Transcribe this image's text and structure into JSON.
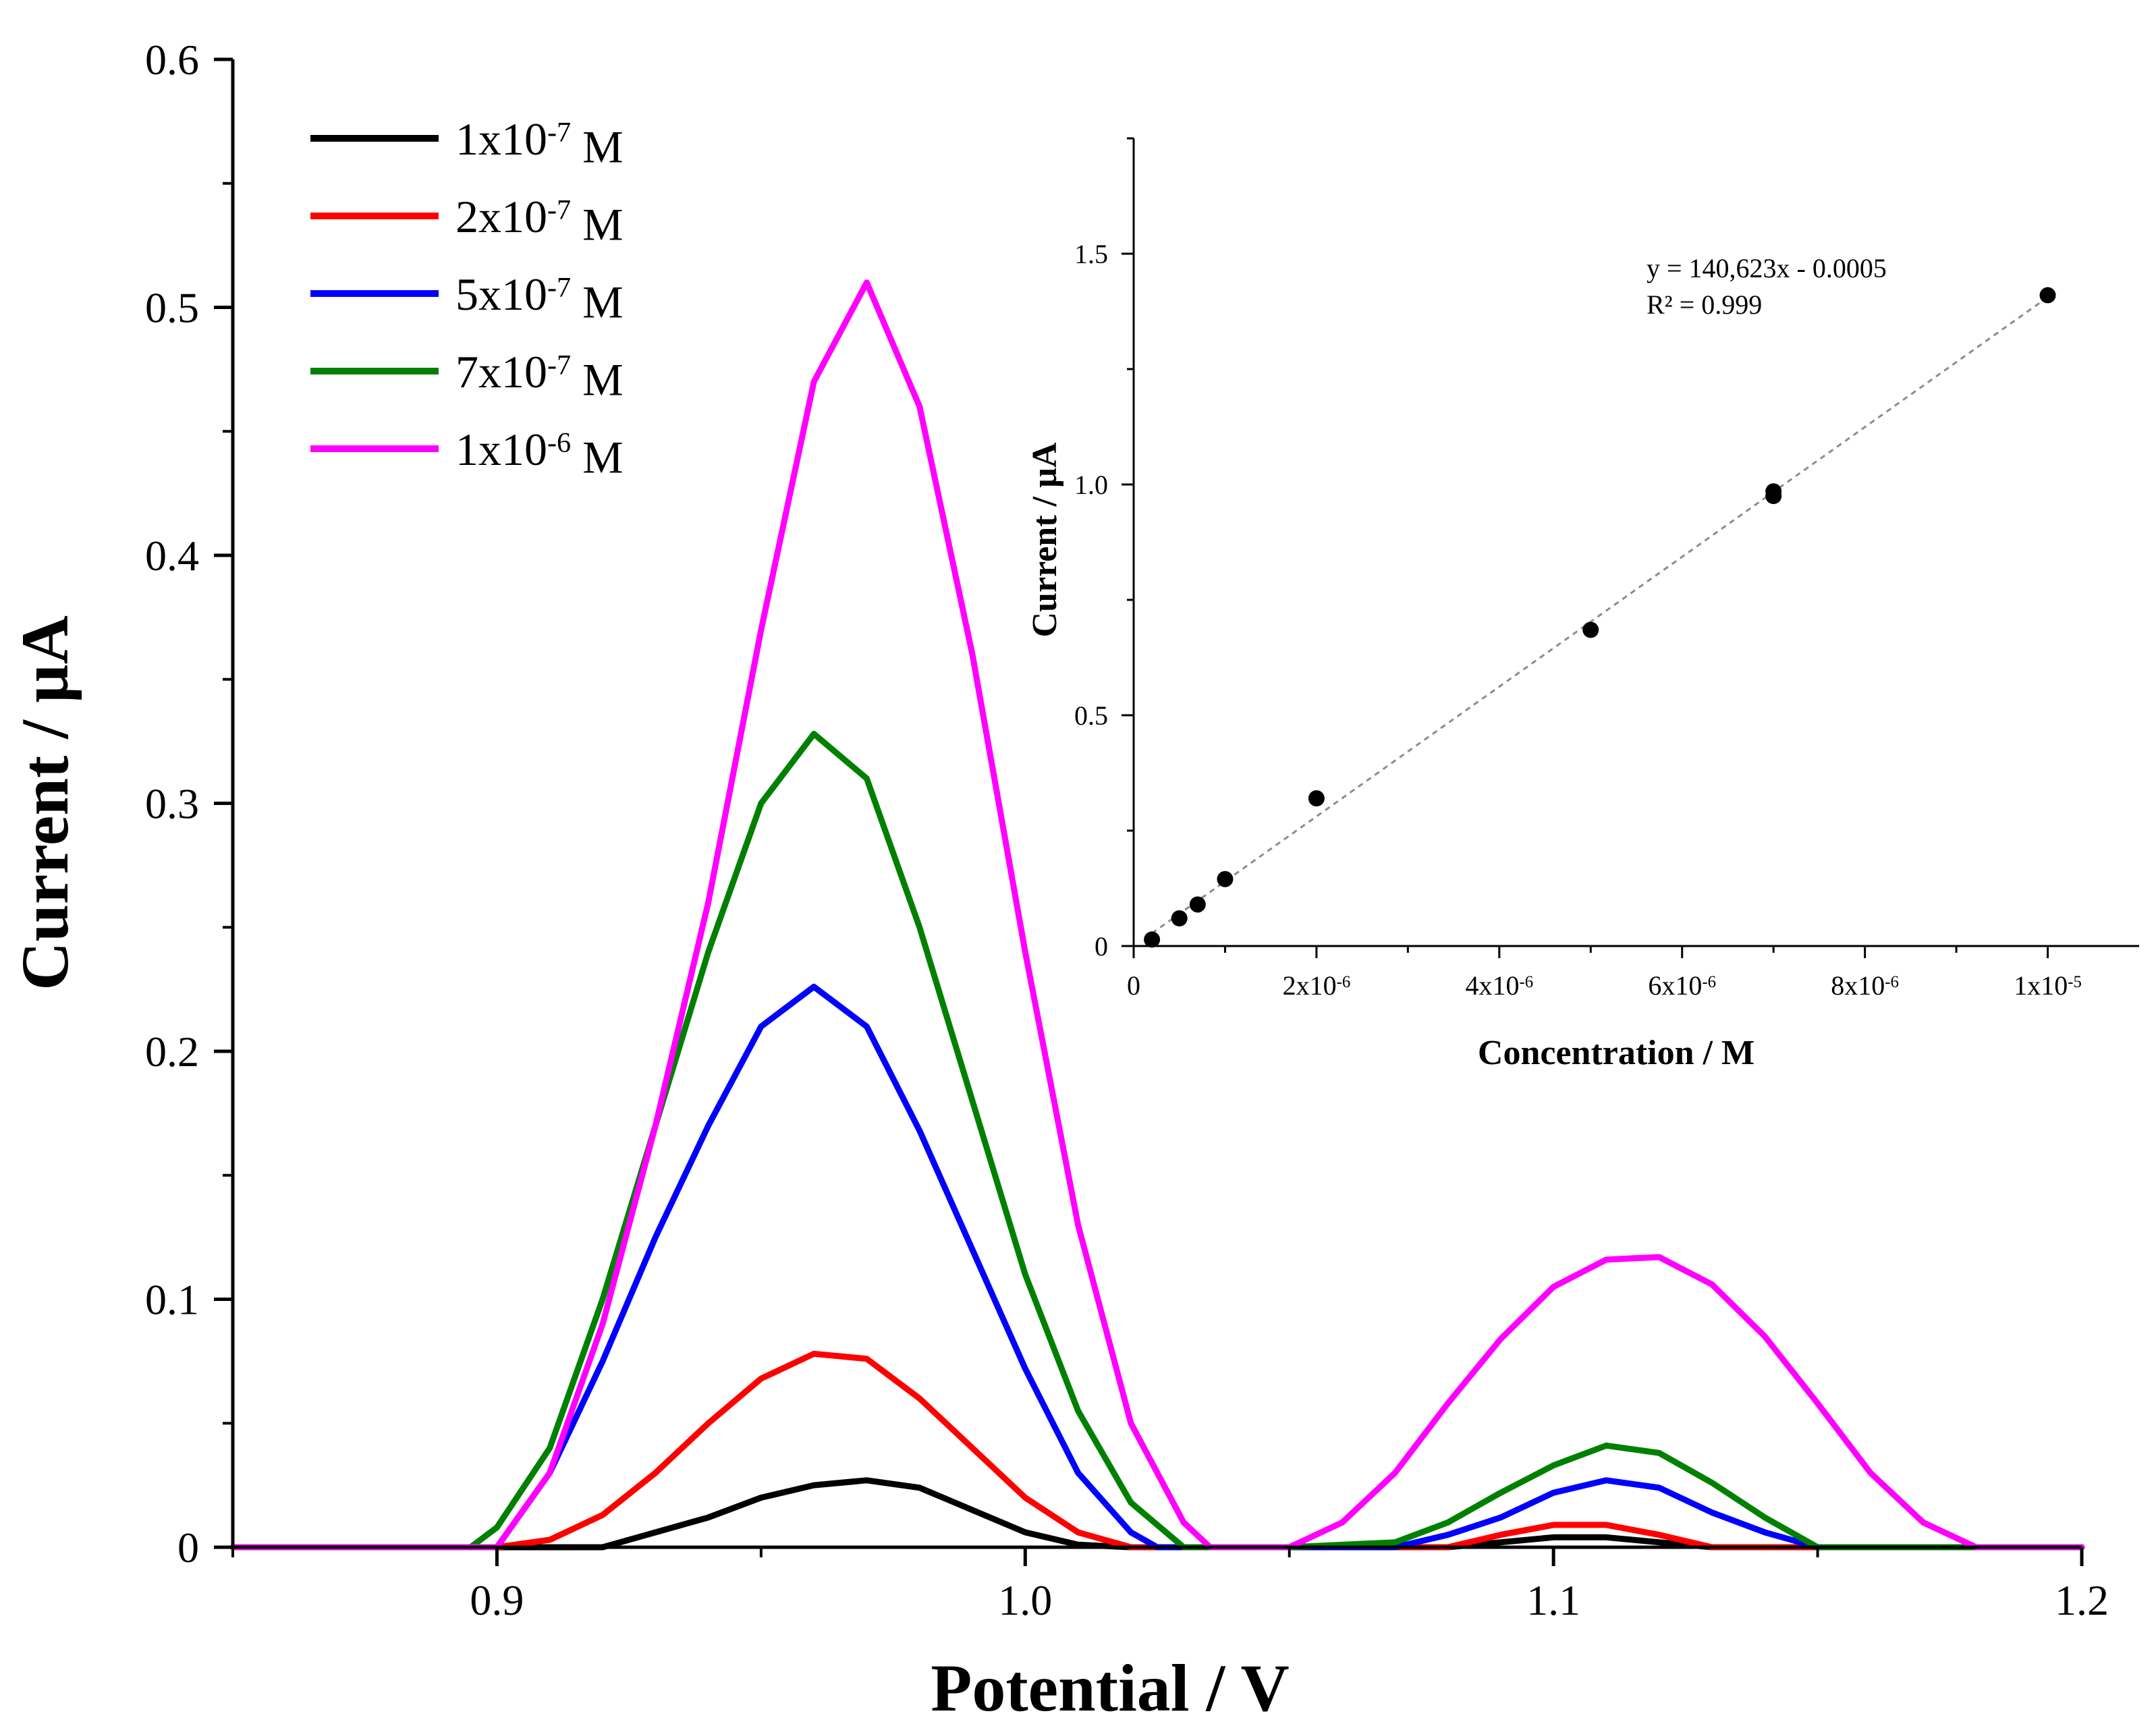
{
  "chart_data": [
    {
      "type": "line",
      "title": "",
      "xlabel": "Potential / V",
      "ylabel": "Current / µA",
      "xlim": [
        0.85,
        1.2
      ],
      "ylim": [
        0,
        0.6
      ],
      "xticks": [
        0.9,
        1.0,
        1.1,
        1.2
      ],
      "xtick_labels": [
        "0.9",
        "1.0",
        "1.1",
        "1.2"
      ],
      "yticks": [
        0,
        0.1,
        0.2,
        0.3,
        0.4,
        0.5,
        0.6
      ],
      "ytick_labels": [
        "0",
        "0.1",
        "0.2",
        "0.3",
        "0.4",
        "0.5",
        "0.6"
      ],
      "legend_position": "top-left",
      "series": [
        {
          "name": "1x10-7 M",
          "label_parts": [
            "1x10",
            "-7",
            " M"
          ],
          "color": "#000000",
          "x": [
            0.85,
            0.92,
            0.93,
            0.94,
            0.95,
            0.96,
            0.97,
            0.98,
            0.99,
            1.0,
            1.01,
            1.02,
            1.05,
            1.08,
            1.09,
            1.1,
            1.11,
            1.12,
            1.13,
            1.2
          ],
          "y": [
            0,
            0,
            0.006,
            0.012,
            0.02,
            0.025,
            0.027,
            0.024,
            0.015,
            0.006,
            0.001,
            0,
            0,
            0,
            0.002,
            0.004,
            0.004,
            0.002,
            0,
            0
          ]
        },
        {
          "name": "2x10-7 M",
          "label_parts": [
            "2x10",
            "-7",
            " M"
          ],
          "color": "#ff0000",
          "x": [
            0.85,
            0.9,
            0.91,
            0.92,
            0.93,
            0.94,
            0.95,
            0.96,
            0.97,
            0.98,
            0.99,
            1.0,
            1.01,
            1.02,
            1.05,
            1.08,
            1.09,
            1.1,
            1.11,
            1.12,
            1.13,
            1.2
          ],
          "y": [
            0,
            0,
            0.003,
            0.013,
            0.03,
            0.05,
            0.068,
            0.078,
            0.076,
            0.06,
            0.04,
            0.02,
            0.006,
            0,
            0,
            0,
            0.005,
            0.009,
            0.009,
            0.005,
            0,
            0
          ]
        },
        {
          "name": "5x10-7 M",
          "label_parts": [
            "5x10",
            "-7",
            " M"
          ],
          "color": "#0000ff",
          "x": [
            0.85,
            0.9,
            0.91,
            0.92,
            0.93,
            0.94,
            0.95,
            0.96,
            0.97,
            0.98,
            0.99,
            1.0,
            1.01,
            1.02,
            1.025,
            1.05,
            1.07,
            1.08,
            1.09,
            1.1,
            1.11,
            1.12,
            1.13,
            1.14,
            1.15,
            1.2
          ],
          "y": [
            0,
            0,
            0.03,
            0.075,
            0.125,
            0.17,
            0.21,
            0.226,
            0.21,
            0.168,
            0.12,
            0.072,
            0.03,
            0.006,
            0,
            0,
            0,
            0.005,
            0.012,
            0.022,
            0.027,
            0.024,
            0.014,
            0.006,
            0,
            0
          ]
        },
        {
          "name": "7x10-7 M",
          "label_parts": [
            "7x10",
            "-7",
            " M"
          ],
          "color": "#008000",
          "x": [
            0.85,
            0.895,
            0.9,
            0.91,
            0.92,
            0.93,
            0.94,
            0.95,
            0.96,
            0.97,
            0.98,
            0.99,
            1.0,
            1.01,
            1.02,
            1.03,
            1.05,
            1.07,
            1.08,
            1.09,
            1.1,
            1.11,
            1.12,
            1.13,
            1.14,
            1.15,
            1.2
          ],
          "y": [
            0,
            0,
            0.008,
            0.04,
            0.1,
            0.17,
            0.24,
            0.3,
            0.328,
            0.31,
            0.25,
            0.18,
            0.11,
            0.055,
            0.018,
            0,
            0,
            0.002,
            0.01,
            0.022,
            0.033,
            0.041,
            0.038,
            0.026,
            0.012,
            0,
            0
          ]
        },
        {
          "name": "1x10-6 M",
          "label_parts": [
            "1x10",
            "-6",
            " M"
          ],
          "color": "#ff00ff",
          "x": [
            0.85,
            0.9,
            0.91,
            0.92,
            0.93,
            0.94,
            0.95,
            0.96,
            0.97,
            0.98,
            0.99,
            1.0,
            1.01,
            1.02,
            1.03,
            1.035,
            1.05,
            1.06,
            1.07,
            1.08,
            1.09,
            1.1,
            1.11,
            1.12,
            1.13,
            1.14,
            1.15,
            1.16,
            1.17,
            1.18,
            1.2
          ],
          "y": [
            0,
            0,
            0.03,
            0.09,
            0.17,
            0.26,
            0.37,
            0.47,
            0.51,
            0.46,
            0.36,
            0.24,
            0.13,
            0.05,
            0.01,
            0,
            0,
            0.01,
            0.03,
            0.058,
            0.084,
            0.105,
            0.116,
            0.117,
            0.106,
            0.085,
            0.058,
            0.03,
            0.01,
            0,
            0
          ]
        }
      ]
    },
    {
      "type": "scatter",
      "title": "",
      "xlabel": "Concentration / M",
      "ylabel": "Current / µA",
      "xlim": [
        0,
        1.1e-05
      ],
      "ylim": [
        0,
        1.75
      ],
      "xticks": [
        0,
        2e-06,
        4e-06,
        6e-06,
        8e-06,
        1e-05
      ],
      "xtick_labels": [
        {
          "base": "0",
          "exp": ""
        },
        {
          "base": "2x10",
          "exp": "-6"
        },
        {
          "base": "4x10",
          "exp": "-6"
        },
        {
          "base": "6x10",
          "exp": "-6"
        },
        {
          "base": "8x10",
          "exp": "-6"
        },
        {
          "base": "1x10",
          "exp": "-5"
        }
      ],
      "yticks": [
        0,
        0.5,
        1.0,
        1.5
      ],
      "ytick_labels": [
        "0",
        "0.5",
        "1.0",
        "1.5"
      ],
      "points": {
        "x": [
          2e-07,
          5e-07,
          7e-07,
          1e-06,
          2e-06,
          5e-06,
          7e-06,
          7e-06,
          1e-05
        ],
        "y": [
          0.014,
          0.06,
          0.09,
          0.145,
          0.32,
          0.685,
          0.975,
          0.985,
          1.41
        ]
      },
      "fit": {
        "slope": 140623,
        "intercept": -0.0005,
        "equation": "y = 140,623x - 0.0005",
        "r_squared": "R² = 0.999"
      }
    }
  ]
}
